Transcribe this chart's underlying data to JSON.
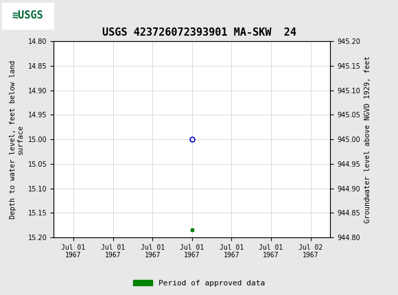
{
  "title": "USGS 423726072393901 MA-SKW  24",
  "title_fontsize": 11,
  "background_color": "#e8e8e8",
  "header_color": "#006633",
  "plot_bg": "#ffffff",
  "ylabel_left": "Depth to water level, feet below land\nsurface",
  "ylabel_right": "Groundwater level above NGVD 1929, feet",
  "ylim_left": [
    15.2,
    14.8
  ],
  "ylim_right": [
    944.8,
    945.2
  ],
  "yticks_left": [
    14.8,
    14.85,
    14.9,
    14.95,
    15.0,
    15.05,
    15.1,
    15.15,
    15.2
  ],
  "yticks_right": [
    945.2,
    945.15,
    945.1,
    945.05,
    945.0,
    944.95,
    944.9,
    944.85,
    944.8
  ],
  "xlim": [
    0,
    6
  ],
  "xtick_positions": [
    0,
    1,
    2,
    3,
    4,
    5,
    6
  ],
  "xtick_labels": [
    "Jul 01\n1967",
    "Jul 01\n1967",
    "Jul 01\n1967",
    "Jul 01\n1967",
    "Jul 01\n1967",
    "Jul 01\n1967",
    "Jul 02\n1967"
  ],
  "data_point_x": 3,
  "data_point_y": 15.0,
  "data_point_color": "#0000cc",
  "green_point_x": 3,
  "green_point_y": 15.185,
  "green_point_color": "#008000",
  "legend_label": "Period of approved data",
  "legend_color": "#008000",
  "font_family": "monospace",
  "grid_color": "#cccccc"
}
